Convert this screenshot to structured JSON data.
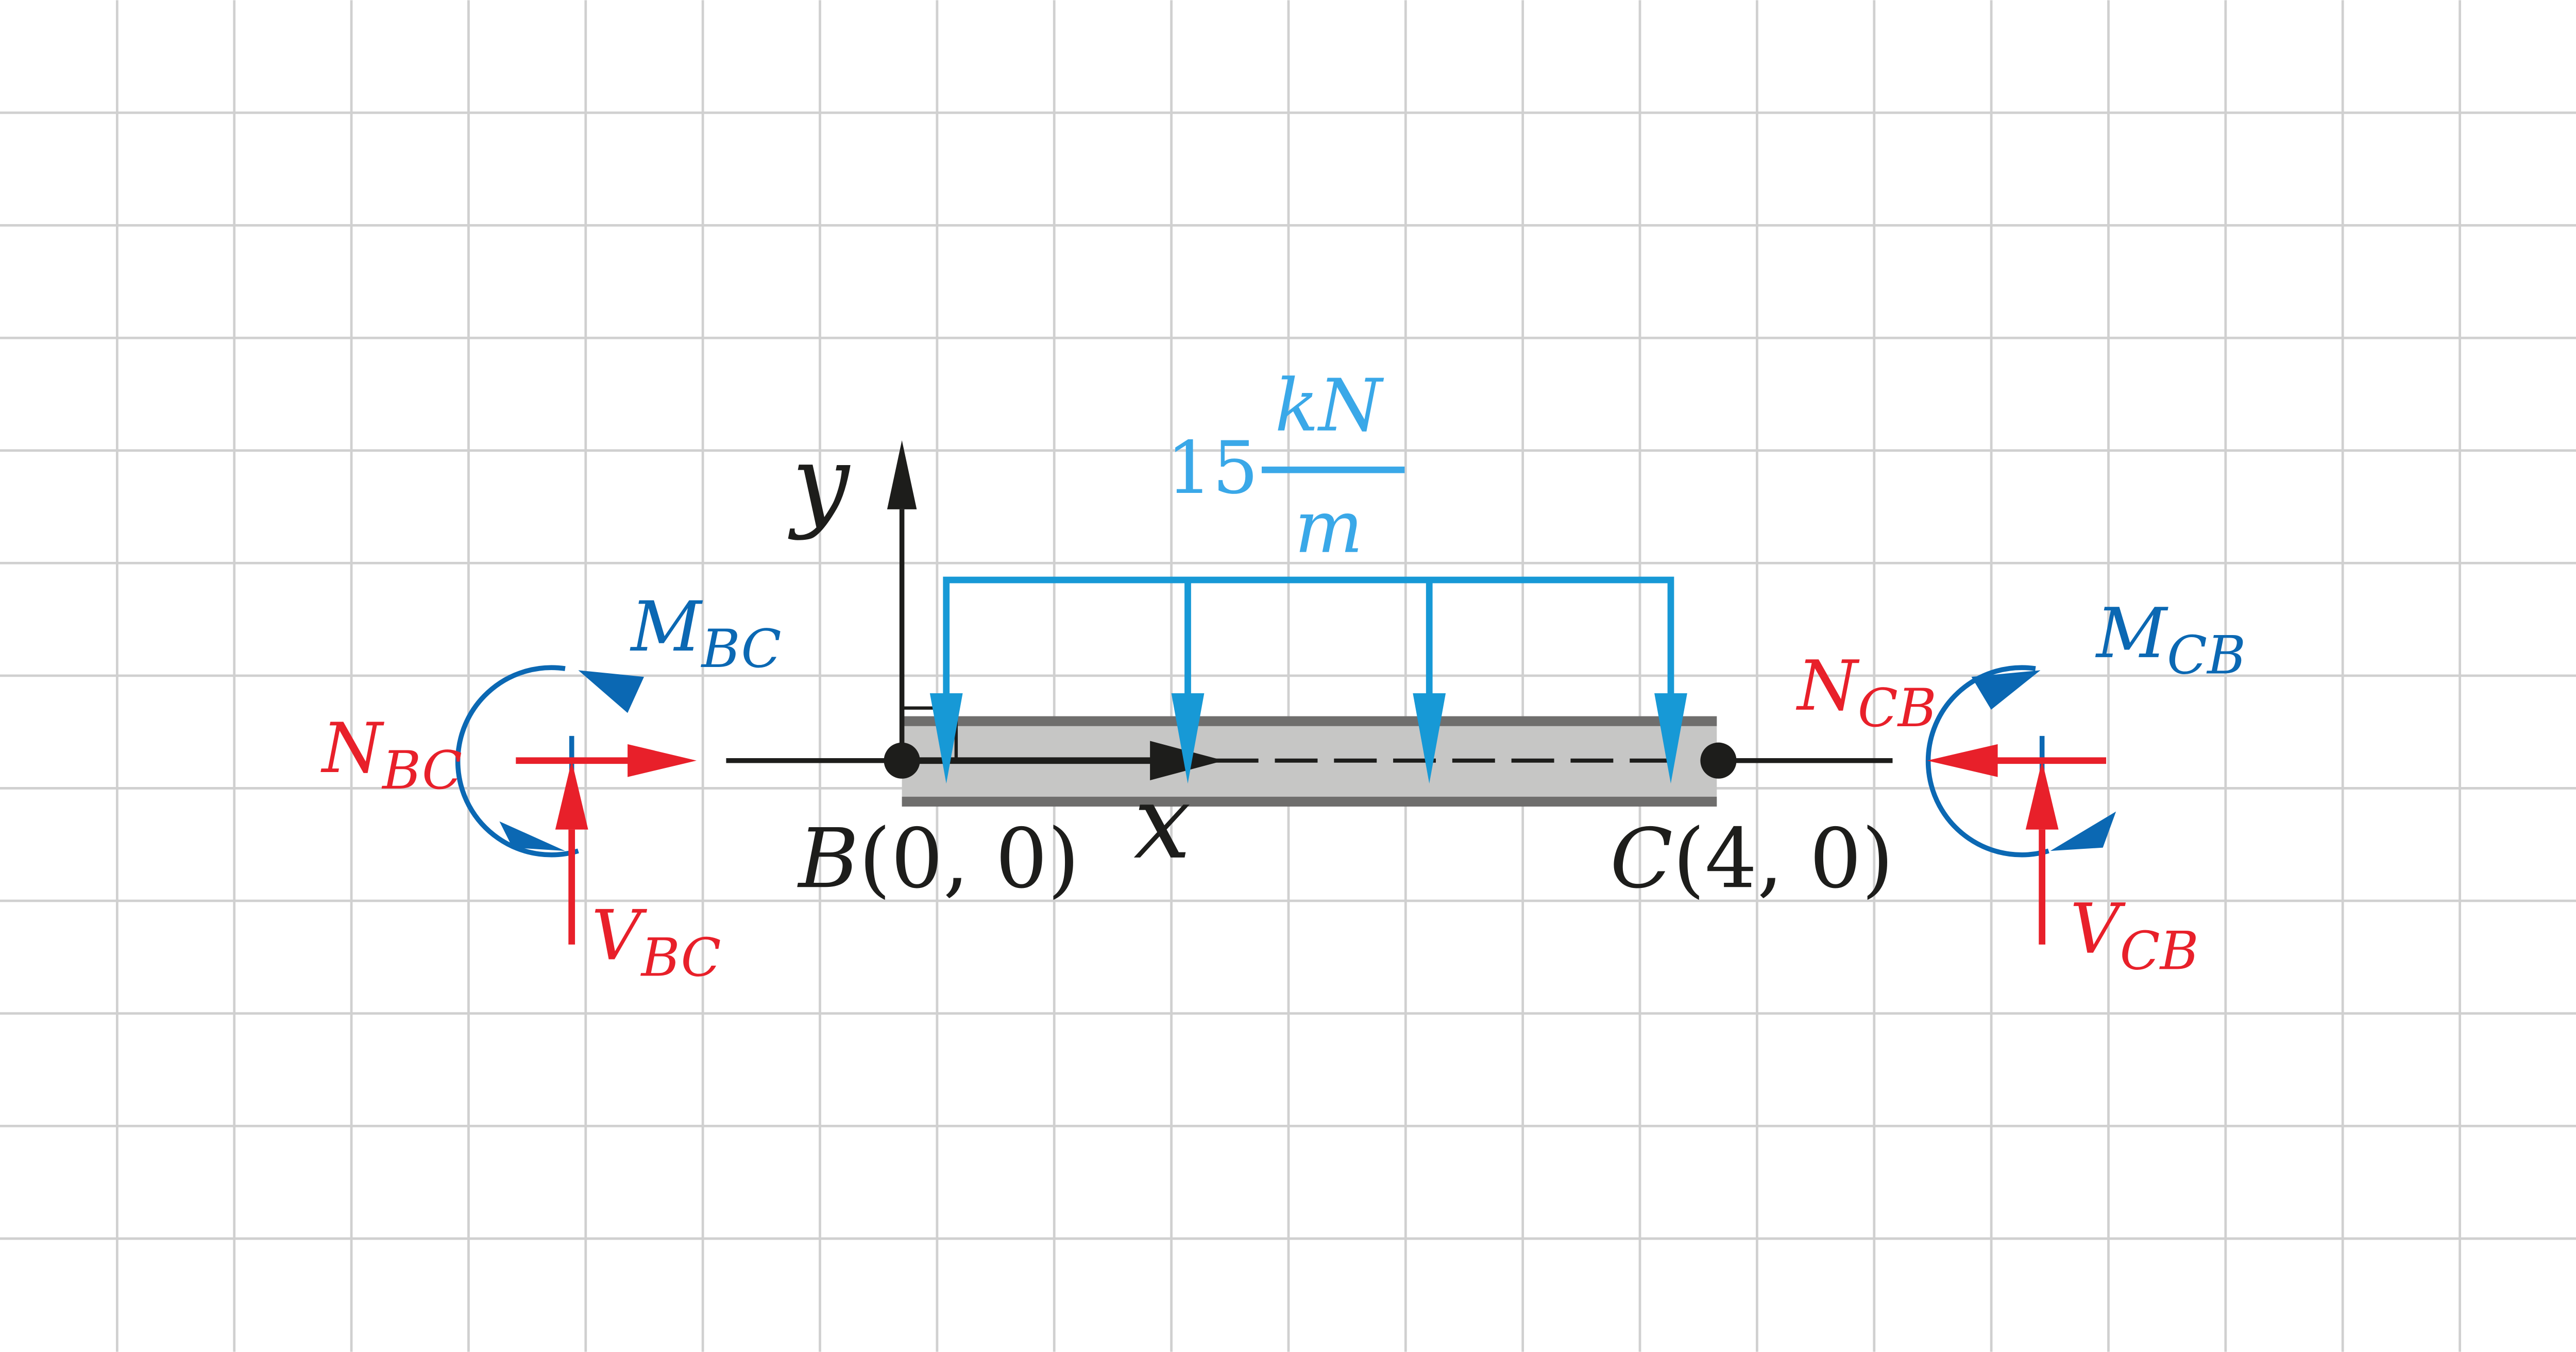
{
  "colors": {
    "grid": "#d0d0d0",
    "beam_fill": "#c6c6c5",
    "beam_edge": "#6f6e6d",
    "axis": "#1d1d1b",
    "load": "#1799d6",
    "load_label": "#3aa8e8",
    "moment": "#0b68b3",
    "force": "#e8202a"
  },
  "axes": {
    "x_label": "x",
    "y_label": "y"
  },
  "nodes": {
    "B": {
      "name": "B",
      "coords": "(0, 0)"
    },
    "C": {
      "name": "C",
      "coords": "(4, 0)"
    }
  },
  "load": {
    "magnitude": "15",
    "unit_numerator": "kN",
    "unit_denominator": "m"
  },
  "left_end": {
    "moment": {
      "main": "M",
      "sub": "BC"
    },
    "normal": {
      "main": "N",
      "sub": "BC"
    },
    "shear": {
      "main": "V",
      "sub": "BC"
    }
  },
  "right_end": {
    "moment": {
      "main": "M",
      "sub": "CB"
    },
    "normal": {
      "main": "N",
      "sub": "CB"
    },
    "shear": {
      "main": "V",
      "sub": "CB"
    }
  }
}
